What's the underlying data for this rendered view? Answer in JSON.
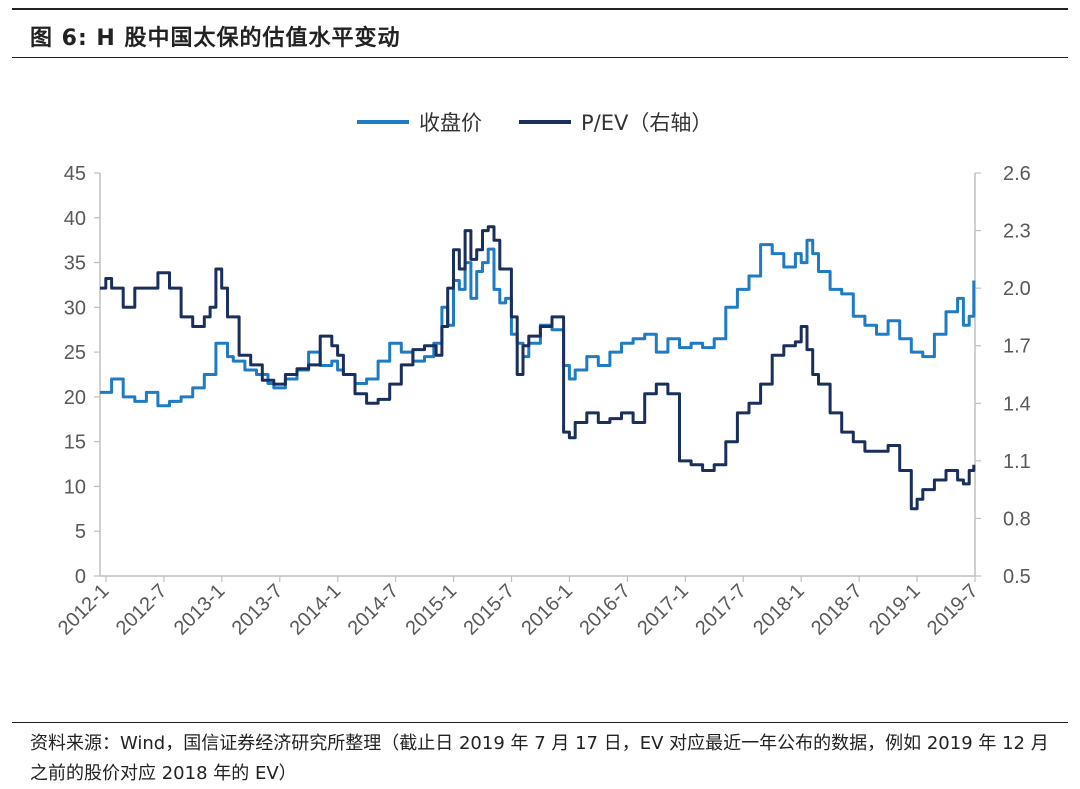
{
  "header": {
    "title": "图 6:  H 股中国太保的估值水平变动"
  },
  "footer": {
    "source": "资料来源：Wind，国信证券经济研究所整理（截止日 2019 年 7 月 17 日，EV 对应最近一年公布的数据，例如 2019 年 12 月之前的股价对应 2018 年的 EV）"
  },
  "colors": {
    "close": "#1f7bc4",
    "pev": "#1b2f5c",
    "axis": "#bfbfbf",
    "text": "#595959"
  },
  "chart_data": {
    "type": "line",
    "legend_position": "top-center",
    "grid": false,
    "x_tick_labels": [
      "2012-1",
      "2012-7",
      "2013-1",
      "2013-7",
      "2014-1",
      "2014-7",
      "2015-1",
      "2015-7",
      "2016-1",
      "2016-7",
      "2017-1",
      "2017-7",
      "2018-1",
      "2018-7",
      "2019-1",
      "2019-7"
    ],
    "x_range": [
      2012.0,
      2019.55
    ],
    "y_left": {
      "range": [
        0,
        45
      ],
      "ticks": [
        0,
        5,
        10,
        15,
        20,
        25,
        30,
        35,
        40,
        45
      ]
    },
    "y_right": {
      "range": [
        0.5,
        2.6
      ],
      "ticks": [
        "0.5",
        "0.8",
        "1.1",
        "1.4",
        "1.7",
        "2.0",
        "2.3",
        "2.6"
      ]
    },
    "series": [
      {
        "name": "收盘价",
        "axis": "left",
        "color": "#1f7bc4",
        "x": [
          2012.0,
          2012.1,
          2012.2,
          2012.3,
          2012.4,
          2012.5,
          2012.6,
          2012.7,
          2012.8,
          2012.9,
          2013.0,
          2013.1,
          2013.15,
          2013.25,
          2013.35,
          2013.45,
          2013.5,
          2013.6,
          2013.7,
          2013.8,
          2013.9,
          2014.0,
          2014.05,
          2014.1,
          2014.2,
          2014.3,
          2014.4,
          2014.5,
          2014.6,
          2014.7,
          2014.8,
          2014.88,
          2014.95,
          2015.0,
          2015.05,
          2015.1,
          2015.15,
          2015.2,
          2015.25,
          2015.3,
          2015.35,
          2015.4,
          2015.45,
          2015.5,
          2015.55,
          2015.6,
          2015.65,
          2015.7,
          2015.8,
          2015.9,
          2016.0,
          2016.05,
          2016.1,
          2016.2,
          2016.3,
          2016.4,
          2016.5,
          2016.6,
          2016.7,
          2016.8,
          2016.9,
          2017.0,
          2017.1,
          2017.2,
          2017.3,
          2017.4,
          2017.5,
          2017.6,
          2017.7,
          2017.8,
          2017.9,
          2018.0,
          2018.05,
          2018.1,
          2018.15,
          2018.2,
          2018.3,
          2018.4,
          2018.5,
          2018.6,
          2018.7,
          2018.8,
          2018.9,
          2019.0,
          2019.1,
          2019.2,
          2019.3,
          2019.4,
          2019.45,
          2019.5,
          2019.54
        ],
        "values": [
          20.5,
          22.0,
          20.0,
          19.5,
          20.5,
          19.0,
          19.5,
          20.0,
          21.0,
          22.5,
          26.0,
          24.5,
          24.0,
          23.0,
          22.5,
          21.5,
          21.0,
          22.0,
          23.0,
          25.0,
          23.5,
          24.0,
          23.0,
          22.5,
          21.5,
          22.0,
          24.0,
          26.0,
          25.0,
          24.0,
          24.5,
          26.0,
          30.0,
          28.0,
          33.0,
          32.0,
          35.0,
          31.0,
          34.0,
          35.0,
          36.5,
          32.0,
          30.5,
          31.0,
          27.0,
          26.0,
          24.5,
          26.0,
          28.0,
          27.5,
          23.5,
          22.0,
          23.0,
          24.5,
          23.5,
          25.0,
          26.0,
          26.5,
          27.0,
          25.0,
          26.5,
          25.5,
          26.0,
          25.5,
          26.5,
          30.0,
          32.0,
          33.5,
          37.0,
          36.0,
          34.5,
          36.0,
          35.0,
          37.5,
          36.0,
          34.0,
          32.0,
          31.5,
          29.0,
          28.0,
          27.0,
          28.5,
          26.5,
          25.0,
          24.5,
          27.0,
          29.5,
          31.0,
          28.0,
          29.0,
          33.0
        ]
      },
      {
        "name": "P/EV（右轴）",
        "axis": "right",
        "color": "#1b2f5c",
        "x": [
          2012.0,
          2012.05,
          2012.1,
          2012.2,
          2012.3,
          2012.4,
          2012.5,
          2012.6,
          2012.7,
          2012.8,
          2012.9,
          2012.95,
          2013.0,
          2013.05,
          2013.1,
          2013.2,
          2013.3,
          2013.4,
          2013.5,
          2013.6,
          2013.7,
          2013.8,
          2013.9,
          2014.0,
          2014.05,
          2014.1,
          2014.2,
          2014.3,
          2014.4,
          2014.5,
          2014.6,
          2014.7,
          2014.8,
          2014.9,
          2014.95,
          2015.0,
          2015.05,
          2015.1,
          2015.15,
          2015.2,
          2015.25,
          2015.3,
          2015.35,
          2015.4,
          2015.45,
          2015.5,
          2015.55,
          2015.6,
          2015.65,
          2015.7,
          2015.8,
          2015.9,
          2016.0,
          2016.05,
          2016.1,
          2016.2,
          2016.3,
          2016.4,
          2016.5,
          2016.6,
          2016.7,
          2016.8,
          2016.9,
          2017.0,
          2017.1,
          2017.2,
          2017.3,
          2017.4,
          2017.5,
          2017.6,
          2017.7,
          2017.8,
          2017.9,
          2018.0,
          2018.05,
          2018.1,
          2018.15,
          2018.2,
          2018.3,
          2018.4,
          2018.5,
          2018.6,
          2018.7,
          2018.8,
          2018.9,
          2019.0,
          2019.05,
          2019.1,
          2019.2,
          2019.3,
          2019.4,
          2019.45,
          2019.5,
          2019.54
        ],
        "values": [
          2.0,
          2.05,
          2.0,
          1.9,
          2.0,
          2.0,
          2.08,
          2.0,
          1.85,
          1.8,
          1.85,
          1.9,
          2.1,
          2.0,
          1.85,
          1.65,
          1.6,
          1.52,
          1.5,
          1.55,
          1.58,
          1.6,
          1.75,
          1.7,
          1.65,
          1.55,
          1.45,
          1.4,
          1.42,
          1.5,
          1.6,
          1.68,
          1.7,
          1.65,
          1.8,
          2.0,
          2.2,
          2.1,
          2.3,
          2.15,
          2.2,
          2.3,
          2.32,
          2.25,
          2.1,
          2.1,
          1.85,
          1.55,
          1.7,
          1.75,
          1.8,
          1.85,
          1.25,
          1.22,
          1.3,
          1.35,
          1.3,
          1.32,
          1.35,
          1.3,
          1.45,
          1.5,
          1.45,
          1.1,
          1.08,
          1.05,
          1.08,
          1.2,
          1.35,
          1.4,
          1.5,
          1.65,
          1.7,
          1.72,
          1.8,
          1.68,
          1.55,
          1.5,
          1.35,
          1.25,
          1.2,
          1.15,
          1.15,
          1.18,
          1.05,
          0.85,
          0.9,
          0.95,
          1.0,
          1.05,
          1.0,
          0.98,
          1.05,
          1.08
        ]
      }
    ]
  }
}
